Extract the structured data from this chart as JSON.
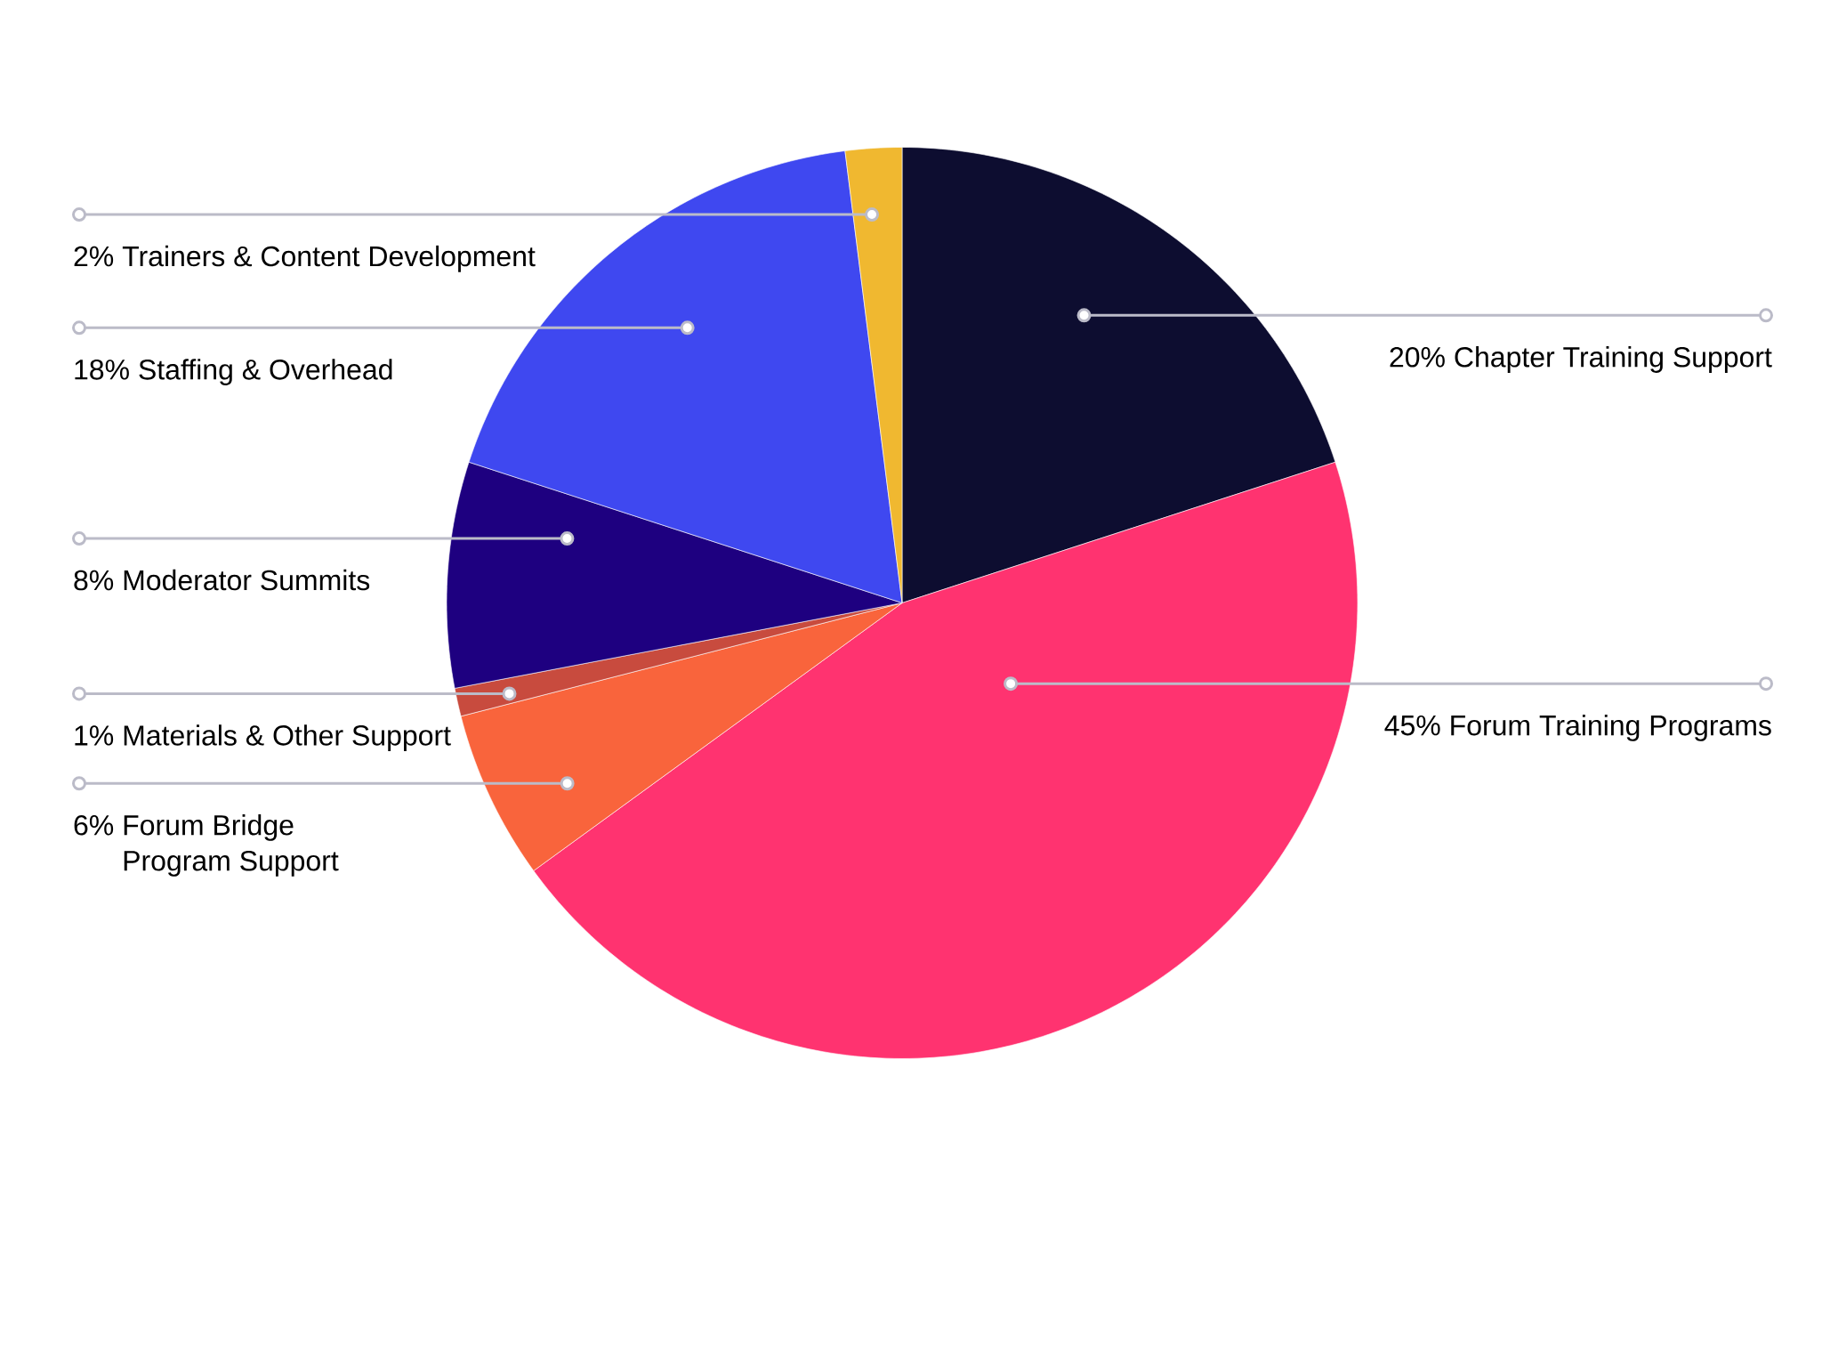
{
  "chart_data": {
    "type": "pie",
    "categories": [
      "Chapter Training Support",
      "Forum Training Programs",
      "Forum Bridge Program Support",
      "Materials & Other Support",
      "Moderator Summits",
      "Staffing & Overhead",
      "Trainers & Content Development"
    ],
    "values": [
      20,
      45,
      6,
      1,
      8,
      18,
      2
    ],
    "colors": [
      "#0d0d30",
      "#ff3370",
      "#f9643c",
      "#c84b3e",
      "#1e0080",
      "#3f48f0",
      "#f0b830"
    ],
    "value_labels": [
      "20%",
      "45%",
      "6%",
      "1%",
      "8%",
      "18%",
      "2%"
    ]
  }
}
